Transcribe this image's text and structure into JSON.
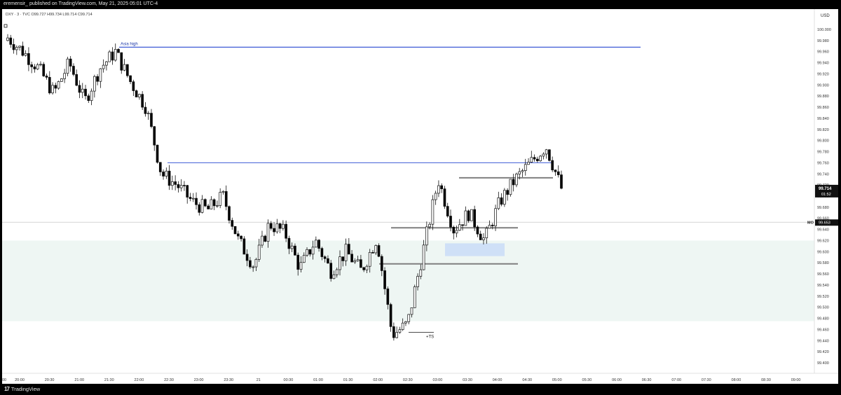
{
  "header": {
    "published": "eremensir_ published on TradingView.com, May 21, 2025 05:01 UTC-4"
  },
  "legend": {
    "symbol": "DXY · 3 · TVC",
    "ohlc": "O99.727  H99.734  L99.714  C99.714"
  },
  "price_scale": {
    "currency": "USD",
    "labels": [
      "100.000",
      "99.980",
      "99.960",
      "99.940",
      "99.920",
      "99.900",
      "99.880",
      "99.860",
      "99.840",
      "99.820",
      "99.800",
      "99.780",
      "99.760",
      "99.740",
      "99.720",
      "99.700",
      "99.680",
      "99.660",
      "99.640",
      "99.620",
      "99.600",
      "99.580",
      "99.560",
      "99.540",
      "99.520",
      "99.500",
      "99.480",
      "99.460",
      "99.440",
      "99.420",
      "99.400"
    ],
    "last_price": "99.714",
    "countdown": "01:52",
    "mo_tag": "MO",
    "mo_price": "99.653"
  },
  "time_scale": {
    "labels": [
      "20:00",
      "20:30",
      "21:00",
      "21:30",
      "22:00",
      "22:30",
      "23:00",
      "23:30",
      "21",
      "00:30",
      "01:00",
      "01:30",
      "02:00",
      "02:30",
      "03:00",
      "03:30",
      "04:00",
      "04:30",
      "05:00",
      "05:30",
      "06:00",
      "06:30",
      "07:00",
      "07:30",
      "08:00",
      "08:30",
      "09:00"
    ],
    "first_label_cut": "00"
  },
  "annotations": {
    "asia_high": "Asia high",
    "ts_marker": "+TS"
  },
  "footer": {
    "brand": "TradingView"
  },
  "colors": {
    "up": "#ffffff",
    "down": "#000000",
    "asia_line": "#3f5bd6",
    "level_line": "#7f7f7f",
    "zone_fill": "#eef6f3",
    "box_fill": "#cfe0f7",
    "mo_line": "#c8c8c8"
  },
  "chart_data": {
    "type": "candlestick",
    "interval": "3",
    "symbol": "DXY",
    "y_range": [
      99.39,
      100.02
    ],
    "times": [
      "20:00",
      "20:30",
      "21:00",
      "21:30",
      "22:00",
      "22:30",
      "23:00",
      "23:30",
      "21",
      "00:30",
      "01:00",
      "01:30",
      "02:00",
      "02:30",
      "03:00",
      "03:30",
      "04:00",
      "04:30",
      "05:00"
    ],
    "close_path": [
      99.985,
      99.96,
      99.93,
      99.885,
      99.94,
      99.87,
      99.93,
      99.96,
      99.905,
      99.86,
      99.74,
      99.72,
      99.69,
      99.675,
      99.7,
      99.62,
      99.575,
      99.65,
      99.635,
      99.57,
      99.62,
      99.565,
      99.6,
      99.565,
      99.625,
      99.45,
      99.47,
      99.6,
      99.73,
      99.64,
      99.67,
      99.62,
      99.69,
      99.73,
      99.76,
      99.79,
      99.714
    ],
    "last": 99.714,
    "levels": [
      {
        "label": "Asia high",
        "price": 99.968
      },
      {
        "price": 99.76
      },
      {
        "price": 99.733
      },
      {
        "price": 99.643
      },
      {
        "price": 99.578
      },
      {
        "price": 99.653,
        "label": "MO"
      }
    ],
    "zone": [
      99.475,
      99.62
    ],
    "box": [
      99.592,
      99.615
    ]
  }
}
